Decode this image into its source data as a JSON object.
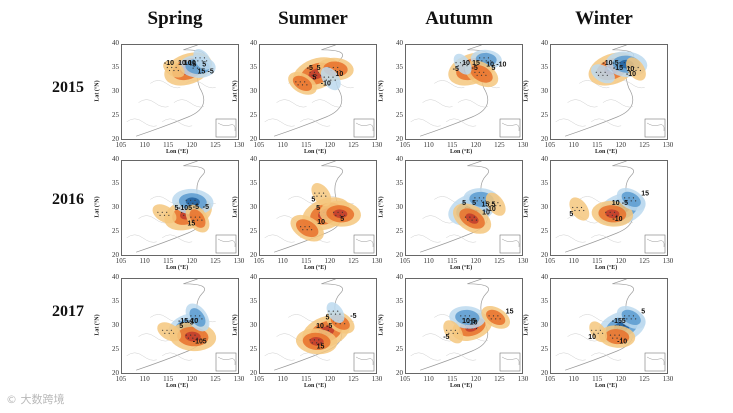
{
  "seasons": [
    "Spring",
    "Summer",
    "Autumn",
    "Winter"
  ],
  "years": [
    "2015",
    "2016",
    "2017"
  ],
  "watermark": "© 大数跨境",
  "colors": {
    "positive_strong": "#c0392b",
    "positive_mid": "#e8702a",
    "positive_weak": "#f5c77e",
    "negative_strong": "#1f5f9e",
    "negative_mid": "#5b9bd0",
    "negative_weak": "#bcd9ee",
    "coast": "#9a9a9a",
    "dots": "#333333"
  },
  "chart_data": {
    "type": "heatmap",
    "description_axes": {
      "xlabel": "Lon (°E)",
      "ylabel": "Lat (°N)",
      "xlim": [
        105,
        130
      ],
      "ylim": [
        20,
        40
      ],
      "xticks": [
        "105",
        "110",
        "115",
        "120",
        "125",
        "130"
      ],
      "yticks": [
        "20",
        "25",
        "30",
        "35",
        "40"
      ],
      "yticks_2015": [
        "30",
        "35",
        "40"
      ],
      "xticks_2015": [
        "105",
        "110",
        "115",
        "120",
        "125",
        "130"
      ]
    },
    "panels": [
      {
        "year": "2015",
        "season": "Spring",
        "contour_labels": [
          "10",
          "15",
          "10",
          "5",
          "10",
          "-5",
          "-10",
          "5"
        ],
        "blobs": [
          {
            "lon": 119,
            "lat": 35,
            "v": 15
          },
          {
            "lon": 121,
            "lat": 35.5,
            "v": -10
          },
          {
            "lon": 116,
            "lat": 35,
            "v": 5
          },
          {
            "lon": 122,
            "lat": 37,
            "v": -5
          }
        ]
      },
      {
        "year": "2015",
        "season": "Summer",
        "contour_labels": [
          "-5",
          "10",
          "5",
          "-10",
          "5"
        ],
        "blobs": [
          {
            "lon": 117,
            "lat": 34,
            "v": 15
          },
          {
            "lon": 121,
            "lat": 35,
            "v": 10
          },
          {
            "lon": 114,
            "lat": 32,
            "v": 8
          },
          {
            "lon": 120,
            "lat": 33,
            "v": -6
          }
        ]
      },
      {
        "year": "2015",
        "season": "Autumn",
        "contour_labels": [
          "10",
          "10",
          "5",
          "-5",
          "15",
          "-10",
          "-5"
        ],
        "blobs": [
          {
            "lon": 119,
            "lat": 35,
            "v": 15
          },
          {
            "lon": 122,
            "lat": 37,
            "v": -8
          },
          {
            "lon": 121,
            "lat": 34,
            "v": 10
          },
          {
            "lon": 117,
            "lat": 36,
            "v": -5
          }
        ]
      },
      {
        "year": "2015",
        "season": "Winter",
        "contour_labels": [
          "-10",
          "10",
          "-15",
          "-10",
          "-5"
        ],
        "blobs": [
          {
            "lon": 118,
            "lat": 35,
            "v": 15
          },
          {
            "lon": 121,
            "lat": 36,
            "v": -12
          },
          {
            "lon": 116,
            "lat": 34,
            "v": -6
          },
          {
            "lon": 123,
            "lat": 35,
            "v": 6
          }
        ]
      },
      {
        "year": "2016",
        "season": "Spring",
        "contour_labels": [
          "-10",
          "-5",
          "5",
          "15",
          "5",
          "-5"
        ],
        "blobs": [
          {
            "lon": 119,
            "lat": 29,
            "v": 15
          },
          {
            "lon": 120,
            "lat": 31.5,
            "v": -12
          },
          {
            "lon": 114,
            "lat": 29,
            "v": 6
          },
          {
            "lon": 121,
            "lat": 28,
            "v": 8
          }
        ]
      },
      {
        "year": "2016",
        "season": "Summer",
        "contour_labels": [
          "5",
          "5",
          "10",
          "5"
        ],
        "blobs": [
          {
            "lon": 119,
            "lat": 29,
            "v": 15
          },
          {
            "lon": 122,
            "lat": 29,
            "v": 12
          },
          {
            "lon": 115,
            "lat": 26,
            "v": 10
          },
          {
            "lon": 118,
            "lat": 33,
            "v": 6
          }
        ]
      },
      {
        "year": "2016",
        "season": "Autumn",
        "contour_labels": [
          "5",
          "15",
          "10",
          "-10",
          "5",
          "5"
        ],
        "blobs": [
          {
            "lon": 119,
            "lat": 30,
            "v": -15
          },
          {
            "lon": 121,
            "lat": 32,
            "v": -10
          },
          {
            "lon": 119,
            "lat": 28,
            "v": 12
          },
          {
            "lon": 124,
            "lat": 31,
            "v": 6
          }
        ]
      },
      {
        "year": "2016",
        "season": "Winter",
        "contour_labels": [
          "10",
          "-10",
          "15",
          "5",
          "-5"
        ],
        "blobs": [
          {
            "lon": 120,
            "lat": 30,
            "v": -15
          },
          {
            "lon": 118,
            "lat": 29,
            "v": 12
          },
          {
            "lon": 122,
            "lat": 32,
            "v": -8
          },
          {
            "lon": 111,
            "lat": 30,
            "v": 6
          }
        ]
      },
      {
        "year": "2017",
        "season": "Spring",
        "contour_labels": [
          "-15",
          "-10",
          "5",
          "-5",
          "-10",
          "5"
        ],
        "blobs": [
          {
            "lon": 119,
            "lat": 30,
            "v": -12
          },
          {
            "lon": 120,
            "lat": 28,
            "v": 14
          },
          {
            "lon": 115,
            "lat": 29,
            "v": 6
          },
          {
            "lon": 121,
            "lat": 32,
            "v": -8
          }
        ]
      },
      {
        "year": "2017",
        "season": "Summer",
        "contour_labels": [
          "10",
          "15",
          "-5",
          "5",
          "-5"
        ],
        "blobs": [
          {
            "lon": 119,
            "lat": 29,
            "v": 15
          },
          {
            "lon": 117,
            "lat": 27,
            "v": 12
          },
          {
            "lon": 122,
            "lat": 31,
            "v": 8
          },
          {
            "lon": 121,
            "lat": 33,
            "v": -5
          }
        ]
      },
      {
        "year": "2017",
        "season": "Autumn",
        "contour_labels": [
          "10",
          "-10",
          "15",
          "-5",
          "5"
        ],
        "blobs": [
          {
            "lon": 119,
            "lat": 30,
            "v": 12
          },
          {
            "lon": 118,
            "lat": 32,
            "v": -10
          },
          {
            "lon": 124,
            "lat": 32,
            "v": 8
          },
          {
            "lon": 115,
            "lat": 29,
            "v": 6
          }
        ]
      },
      {
        "year": "2017",
        "season": "Winter",
        "contour_labels": [
          "-15",
          "-10",
          "5",
          "10",
          "5"
        ],
        "blobs": [
          {
            "lon": 120,
            "lat": 30,
            "v": -15
          },
          {
            "lon": 119,
            "lat": 28,
            "v": 10
          },
          {
            "lon": 122,
            "lat": 32,
            "v": -8
          },
          {
            "lon": 115,
            "lat": 29,
            "v": 5
          }
        ]
      }
    ]
  }
}
